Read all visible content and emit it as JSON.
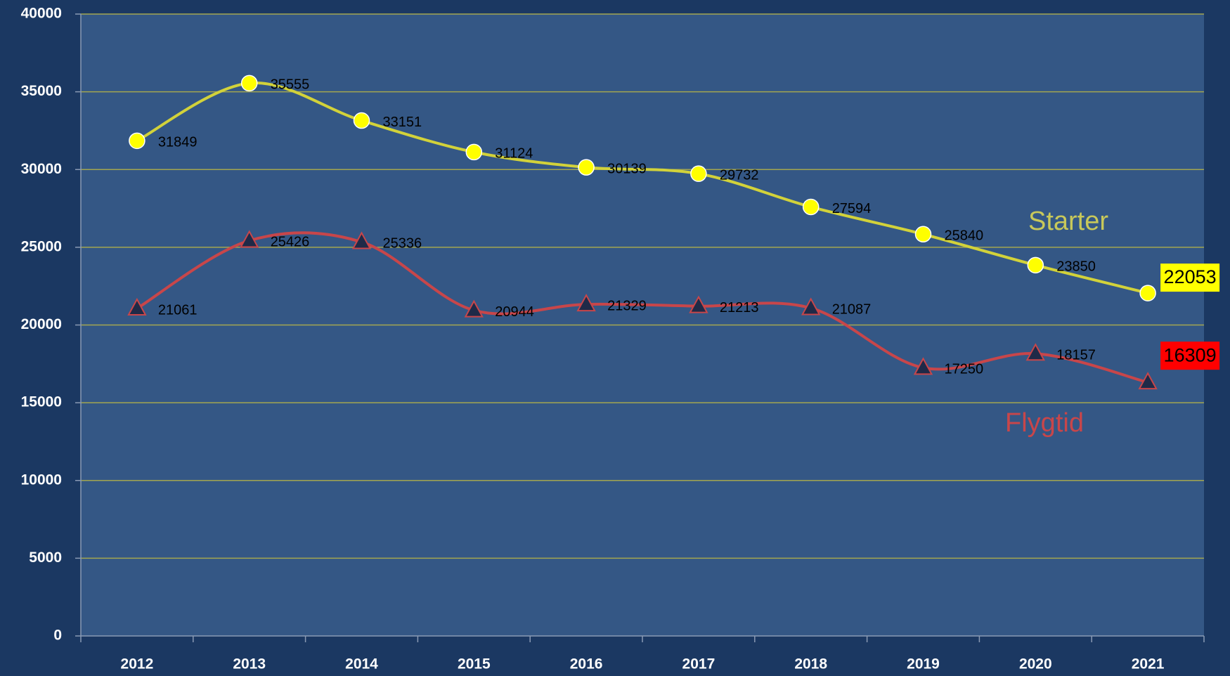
{
  "chart_data": {
    "type": "line",
    "categories": [
      "2012",
      "2013",
      "2014",
      "2015",
      "2016",
      "2017",
      "2018",
      "2019",
      "2020",
      "2021"
    ],
    "series": [
      {
        "name": "Starter",
        "color": "#d2d23a",
        "marker": "circle",
        "marker_color": "#ffff00",
        "highlight_color": "#ffff00",
        "values": [
          31849,
          35555,
          33151,
          31124,
          30139,
          29732,
          27594,
          25840,
          23850,
          22053
        ]
      },
      {
        "name": "Flygtid",
        "color": "#c8464a",
        "marker": "triangle",
        "marker_color": "#1f2a48",
        "highlight_color": "#ff0000",
        "values": [
          21061,
          25426,
          25336,
          20944,
          21329,
          21213,
          21087,
          17250,
          18157,
          16309
        ]
      }
    ],
    "ylim": [
      0,
      40000
    ],
    "yticks": [
      0,
      5000,
      10000,
      15000,
      20000,
      25000,
      30000,
      35000,
      40000
    ],
    "grid": true,
    "smooth": true
  }
}
